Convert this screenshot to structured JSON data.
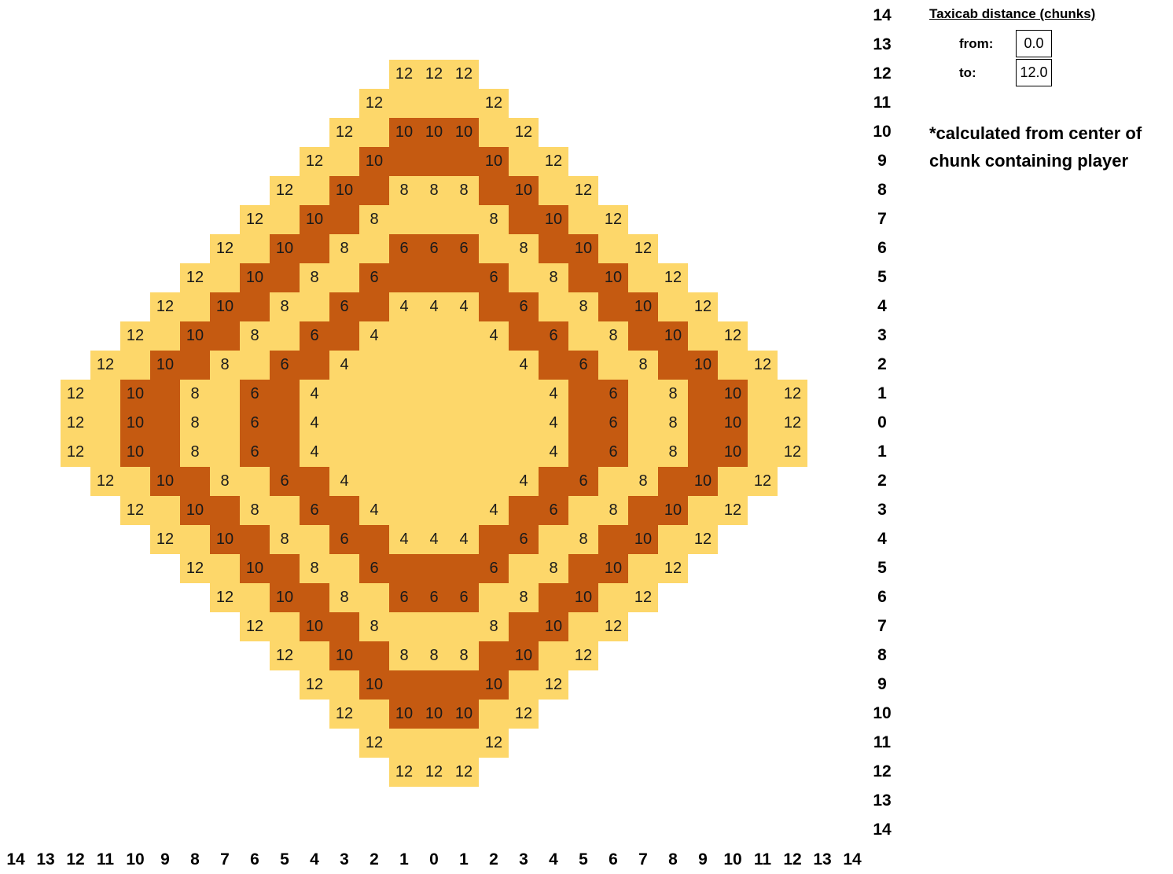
{
  "panel": {
    "title": "Taxicab distance (chunks)",
    "from_label": "from:",
    "from_value": "0.0",
    "to_label": "to:",
    "to_value": "12.0",
    "note": "*calculated from center of chunk containing player"
  },
  "grid": {
    "row_labels": [
      "14",
      "13",
      "12",
      "11",
      "10",
      "9",
      "8",
      "7",
      "6",
      "5",
      "4",
      "3",
      "2",
      "1",
      "0",
      "1",
      "2",
      "3",
      "4",
      "5",
      "6",
      "7",
      "8",
      "9",
      "10",
      "11",
      "12",
      "13",
      "14"
    ],
    "col_labels": [
      "14",
      "13",
      "12",
      "11",
      "10",
      "9",
      "8",
      "7",
      "6",
      "5",
      "4",
      "3",
      "2",
      "1",
      "0",
      "1",
      "2",
      "3",
      "4",
      "5",
      "6",
      "7",
      "8",
      "9",
      "10",
      "11",
      "12",
      "13",
      "14"
    ],
    "colors": {
      "light": "#fdd76a",
      "dark": "#c55a11"
    },
    "distance_range": [
      0,
      12
    ]
  }
}
